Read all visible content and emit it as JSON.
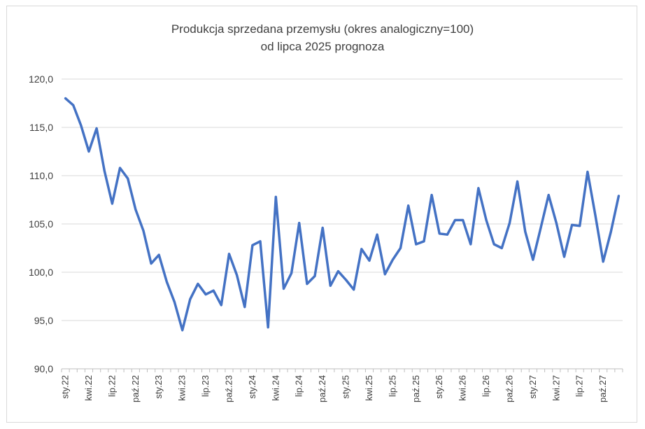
{
  "chart_data": {
    "type": "line",
    "title": [
      "Produkcja sprzedana przemysłu (okres analogiczny=100)",
      "od lipca 2025 prognoza"
    ],
    "xlabel": "",
    "ylabel": "",
    "ylim": [
      90,
      120
    ],
    "yticks": [
      90,
      95,
      100,
      105,
      110,
      115,
      120
    ],
    "ytick_labels": [
      "90,0",
      "95,0",
      "100,0",
      "105,0",
      "110,0",
      "115,0",
      "120,0"
    ],
    "grid": true,
    "legend": "none",
    "categories": [
      "sty.22",
      "lut.22",
      "mar.22",
      "kwi.22",
      "maj.22",
      "cze.22",
      "lip.22",
      "sie.22",
      "wrz.22",
      "paź.22",
      "lis.22",
      "gru.22",
      "sty.23",
      "lut.23",
      "mar.23",
      "kwi.23",
      "maj.23",
      "cze.23",
      "lip.23",
      "sie.23",
      "wrz.23",
      "paź.23",
      "lis.23",
      "gru.23",
      "sty.24",
      "lut.24",
      "mar.24",
      "kwi.24",
      "maj.24",
      "cze.24",
      "lip.24",
      "sie.24",
      "wrz.24",
      "paź.24",
      "lis.24",
      "gru.24",
      "sty.25",
      "lut.25",
      "mar.25",
      "kwi.25",
      "maj.25",
      "cze.25",
      "lip.25",
      "sie.25",
      "wrz.25",
      "paź.25",
      "lis.25",
      "gru.25",
      "sty.26",
      "lut.26",
      "mar.26",
      "kwi.26",
      "maj.26",
      "cze.26",
      "lip.26",
      "sie.26",
      "wrz.26",
      "paź.26",
      "lis.26",
      "gru.26",
      "sty.27",
      "lut.27",
      "mar.27",
      "kwi.27",
      "maj.27",
      "cze.27",
      "lip.27",
      "sie.27",
      "wrz.27",
      "paź.27",
      "lis.27",
      "gru.27"
    ],
    "x_tick_labels": [
      "sty.22",
      "kwi.22",
      "lip.22",
      "paź.22",
      "sty.23",
      "kwi.23",
      "lip.23",
      "paź.23",
      "sty.24",
      "kwi.24",
      "lip.24",
      "paź.24",
      "sty.25",
      "kwi.25",
      "lip.25",
      "paź.25",
      "sty.26",
      "kwi.26",
      "lip.26",
      "paź.26",
      "sty.27",
      "kwi.27",
      "lip.27",
      "paź.27"
    ],
    "series": [
      {
        "color": "#4472c4",
        "values": [
          118.0,
          117.3,
          115.2,
          112.5,
          114.9,
          110.5,
          107.1,
          110.8,
          109.7,
          106.5,
          104.3,
          100.9,
          101.8,
          99.0,
          96.9,
          94.0,
          97.2,
          98.8,
          97.7,
          98.1,
          96.6,
          101.9,
          99.7,
          96.4,
          102.8,
          103.2,
          94.3,
          107.8,
          98.3,
          99.9,
          105.1,
          98.8,
          99.6,
          104.6,
          98.6,
          100.1,
          99.2,
          98.2,
          102.4,
          101.2,
          103.9,
          99.8,
          101.3,
          102.5,
          106.9,
          102.9,
          103.2,
          108.0,
          104.0,
          103.9,
          105.4,
          105.4,
          102.9,
          108.7,
          105.4,
          102.9,
          102.5,
          105.1,
          109.4,
          104.2,
          101.3,
          104.6,
          108.0,
          105.1,
          101.6,
          104.9,
          104.8,
          110.4,
          105.9,
          101.1,
          104.2,
          107.9
        ]
      }
    ]
  }
}
